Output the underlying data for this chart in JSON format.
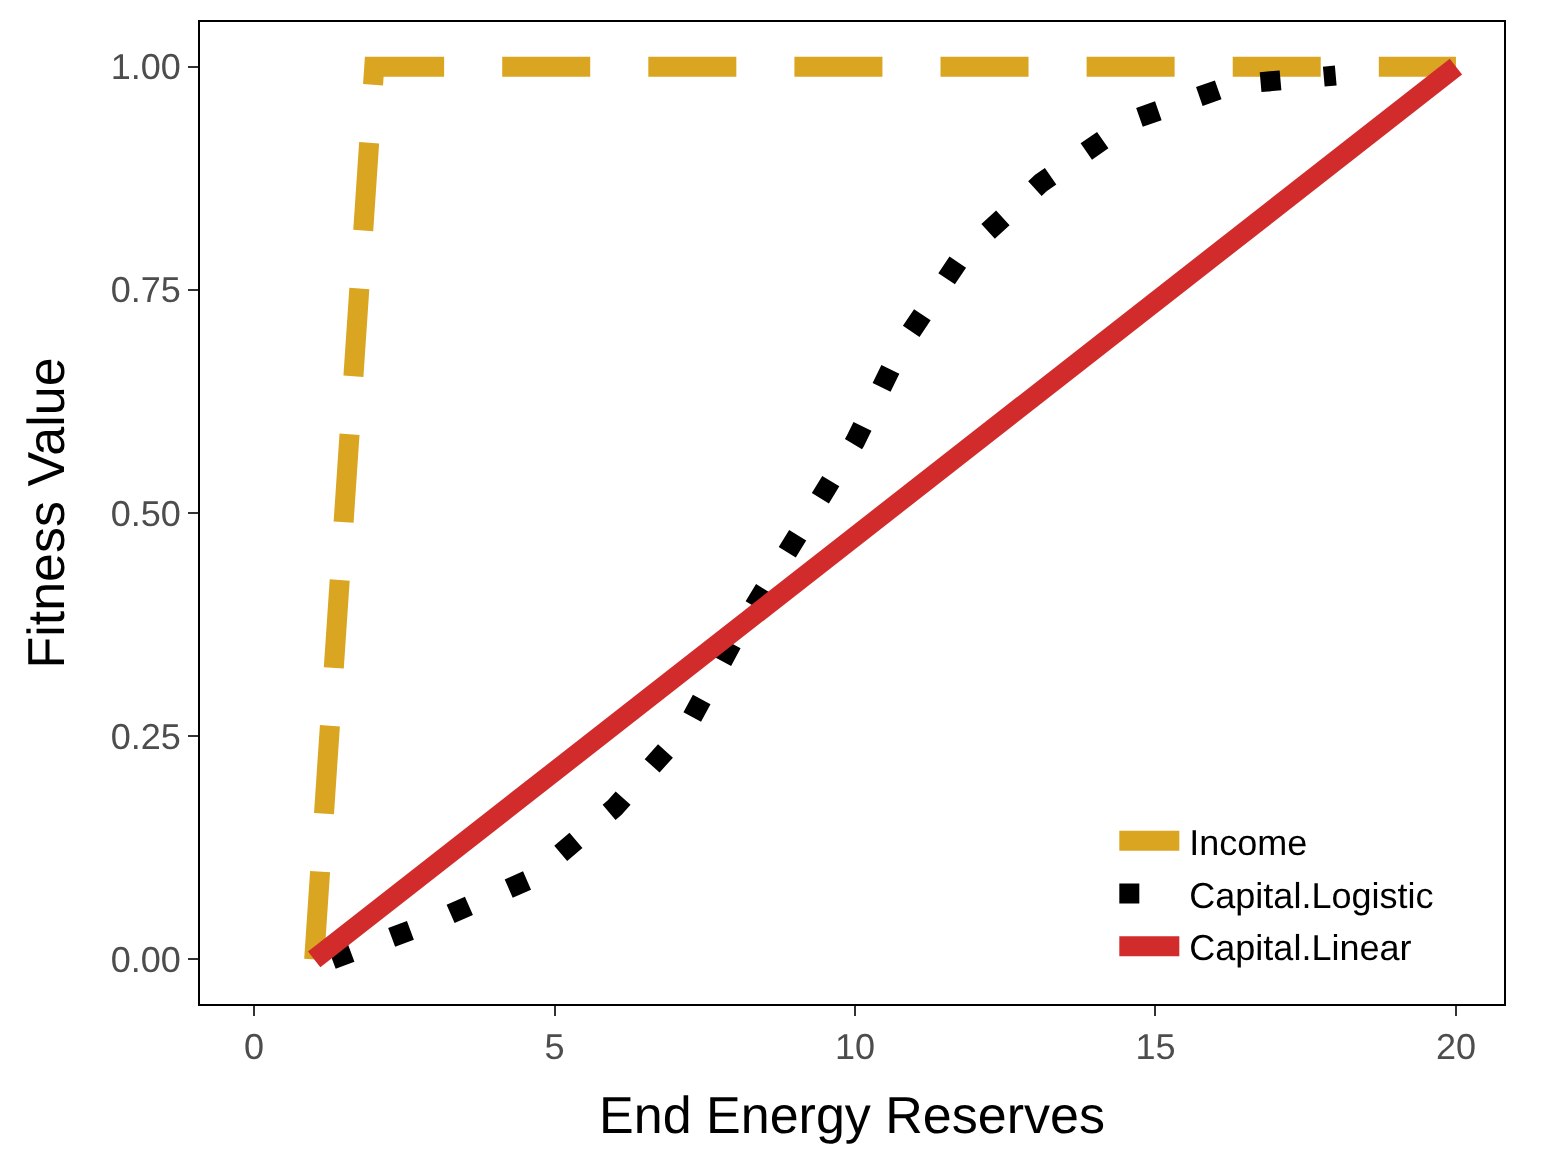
{
  "chart_data": {
    "type": "line",
    "xlabel": "End Energy Reserves",
    "ylabel": "Fitness Value",
    "xlim": [
      -0.9,
      20.8
    ],
    "xticks": [
      0,
      5,
      10,
      15,
      20
    ],
    "ylim": [
      -0.05,
      1.05
    ],
    "yticks": [
      {
        "value": 0,
        "label": "0.00"
      },
      {
        "value": 0.25,
        "label": "0.25"
      },
      {
        "value": 0.5,
        "label": "0.50"
      },
      {
        "value": 0.75,
        "label": "0.75"
      },
      {
        "value": 1,
        "label": "1.00"
      }
    ],
    "legend": "bottom right",
    "marker": "none",
    "series": [
      {
        "name": "Income",
        "color": "#daa520",
        "line_style": "dashed",
        "x": [
          1,
          2,
          20
        ],
        "values": [
          0,
          1,
          1
        ]
      },
      {
        "name": "Capital.Logistic",
        "color": "#000000",
        "line_style": "dotted",
        "x": [
          1.3,
          2.9,
          4.6,
          6,
          7.2,
          8,
          9,
          10,
          10.8,
          11.8,
          13.1,
          14.6,
          16.3,
          18
        ],
        "values": [
          0,
          0.04,
          0.09,
          0.17,
          0.26,
          0.36,
          0.47,
          0.58,
          0.69,
          0.79,
          0.87,
          0.94,
          0.98,
          0.99
        ]
      },
      {
        "name": "Capital.Linear",
        "color": "#d12b2b",
        "line_style": "solid",
        "x": [
          1,
          20
        ],
        "values": [
          0,
          1
        ]
      }
    ]
  }
}
